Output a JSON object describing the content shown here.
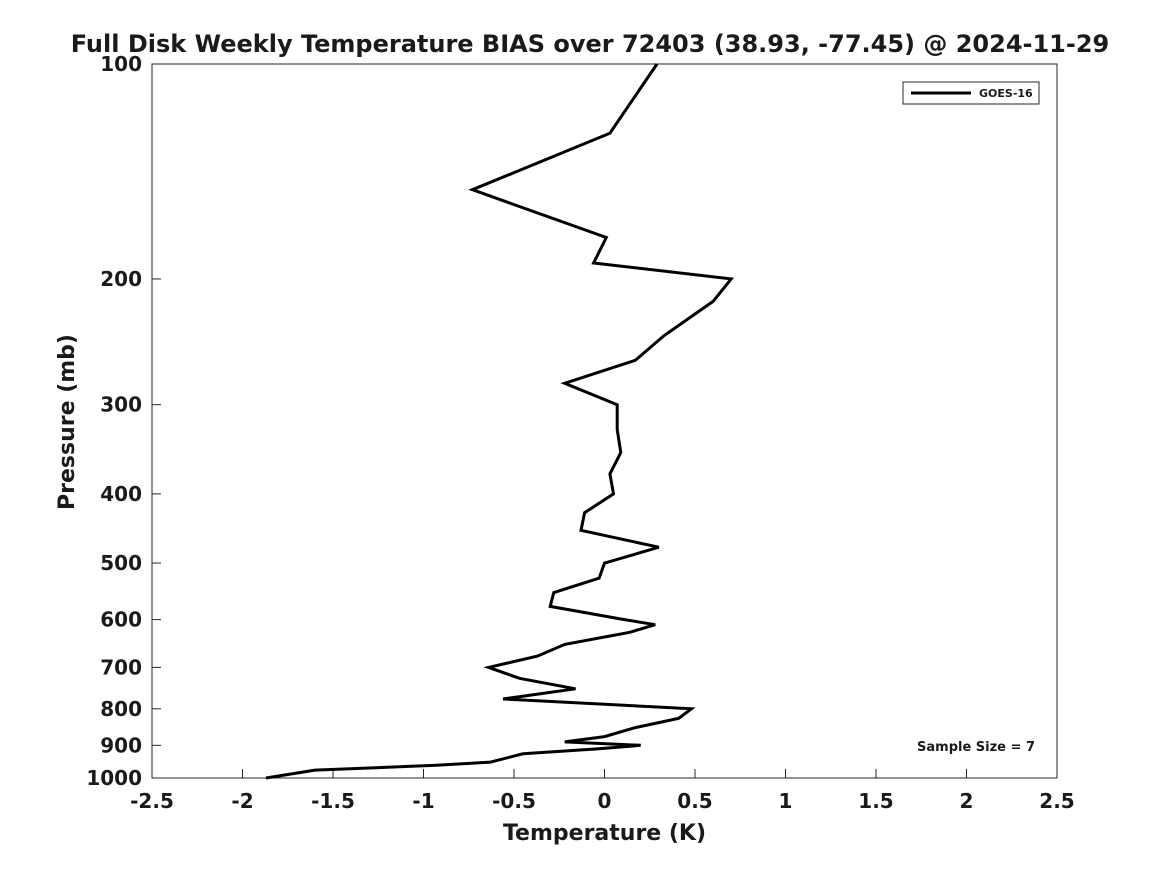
{
  "chart_data": {
    "type": "line",
    "title": "Full Disk Weekly Temperature BIAS over 72403 (38.93, -77.45) @ 2024-11-29",
    "xlabel": "Temperature (K)",
    "ylabel": "Pressure (mb)",
    "xlim": [
      -2.5,
      2.5
    ],
    "ylim": [
      1000,
      100
    ],
    "yscale": "log",
    "yaxis_inverted": true,
    "xticks": [
      -2.5,
      -2,
      -1.5,
      -1,
      -0.5,
      0,
      0.5,
      1,
      1.5,
      2,
      2.5
    ],
    "xtick_labels": [
      "-2.5",
      "-2",
      "-1.5",
      "-1",
      "-0.5",
      "0",
      "0.5",
      "1",
      "1.5",
      "2",
      "2.5"
    ],
    "yticks": [
      100,
      200,
      300,
      400,
      500,
      600,
      700,
      800,
      900,
      1000
    ],
    "ytick_labels": [
      "100",
      "200",
      "300",
      "400",
      "500",
      "600",
      "700",
      "800",
      "900",
      "1000"
    ],
    "grid": false,
    "legend_position": "top-right",
    "series": [
      {
        "name": "GOES-16",
        "color": "#000000",
        "points": [
          {
            "x": 0.29,
            "p": 100
          },
          {
            "x": 0.03,
            "p": 125
          },
          {
            "x": -0.73,
            "p": 150
          },
          {
            "x": 0.01,
            "p": 175
          },
          {
            "x": -0.06,
            "p": 190
          },
          {
            "x": 0.7,
            "p": 200
          },
          {
            "x": 0.6,
            "p": 215
          },
          {
            "x": 0.33,
            "p": 240
          },
          {
            "x": 0.17,
            "p": 260
          },
          {
            "x": -0.22,
            "p": 280
          },
          {
            "x": 0.07,
            "p": 300
          },
          {
            "x": 0.07,
            "p": 325
          },
          {
            "x": 0.09,
            "p": 350
          },
          {
            "x": 0.03,
            "p": 375
          },
          {
            "x": 0.05,
            "p": 400
          },
          {
            "x": 0.05,
            "p": 400
          },
          {
            "x": -0.11,
            "p": 425
          },
          {
            "x": -0.13,
            "p": 450
          },
          {
            "x": 0.3,
            "p": 475
          },
          {
            "x": 0.0,
            "p": 500
          },
          {
            "x": -0.03,
            "p": 525
          },
          {
            "x": -0.28,
            "p": 550
          },
          {
            "x": -0.3,
            "p": 575
          },
          {
            "x": 0.11,
            "p": 600
          },
          {
            "x": 0.28,
            "p": 610
          },
          {
            "x": 0.14,
            "p": 625
          },
          {
            "x": -0.22,
            "p": 650
          },
          {
            "x": -0.37,
            "p": 675
          },
          {
            "x": -0.64,
            "p": 700
          },
          {
            "x": -0.47,
            "p": 725
          },
          {
            "x": -0.16,
            "p": 750
          },
          {
            "x": -0.56,
            "p": 775
          },
          {
            "x": 0.48,
            "p": 800
          },
          {
            "x": 0.41,
            "p": 825
          },
          {
            "x": 0.17,
            "p": 850
          },
          {
            "x": 0.0,
            "p": 875
          },
          {
            "x": -0.22,
            "p": 890
          },
          {
            "x": 0.2,
            "p": 900
          },
          {
            "x": -0.03,
            "p": 910
          },
          {
            "x": -0.45,
            "p": 925
          },
          {
            "x": -0.63,
            "p": 950
          },
          {
            "x": -0.93,
            "p": 960
          },
          {
            "x": -1.6,
            "p": 975
          },
          {
            "x": -1.87,
            "p": 1000
          }
        ]
      }
    ],
    "annotations": [
      {
        "text": "Sample Size = 7",
        "position": "bottom-right"
      }
    ]
  }
}
